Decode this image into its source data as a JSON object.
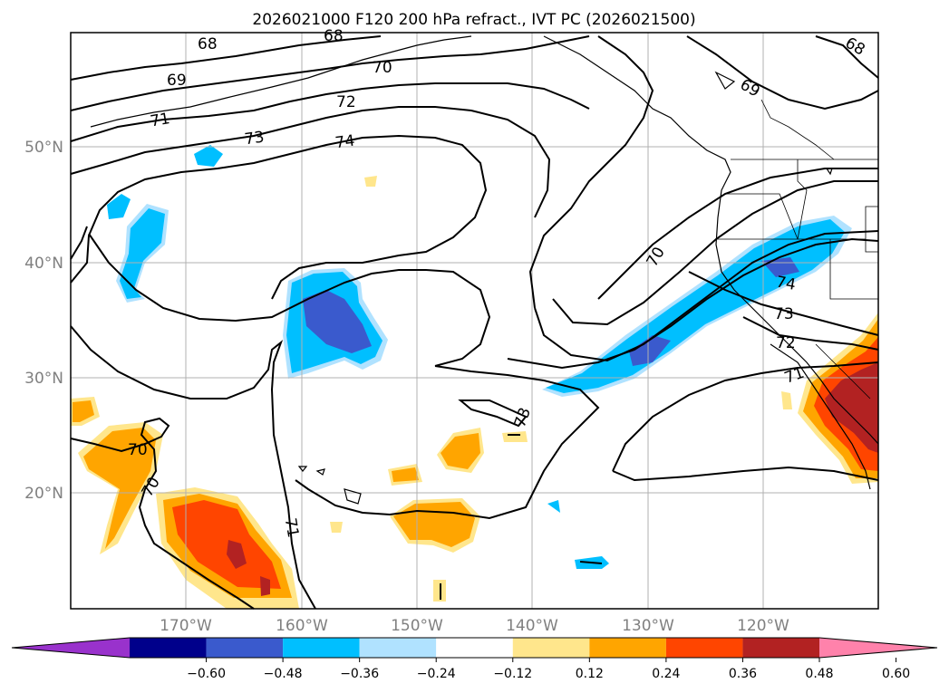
{
  "title": "2026021000 F120 200 hPa refract., IVT PC (2026021500)",
  "lat_labels": [
    "50°N",
    "40°N",
    "30°N",
    "20°N"
  ],
  "lon_labels": [
    "170°W",
    "160°W",
    "150°W",
    "140°W",
    "130°W",
    "120°W"
  ],
  "colorbar": {
    "ticks": [
      "−0.60",
      "−0.48",
      "−0.36",
      "−0.24",
      "−0.12",
      "0.12",
      "0.24",
      "0.36",
      "0.48",
      "0.60"
    ],
    "colors": [
      "#9932cc",
      "#00008b",
      "#3a5acd",
      "#00bfff",
      "#b0e2ff",
      "#ffffff",
      "#ffe68c",
      "#ffa500",
      "#ff4500",
      "#b22222",
      "#ff82ab"
    ]
  },
  "contour_labels": {
    "c68a": "68",
    "c68b": "68",
    "c69a": "69",
    "c69b": "69",
    "c70a": "70",
    "c70b": "70",
    "c70c": "70",
    "c70d": "70",
    "c71a": "71",
    "c71b": "71",
    "c71c": "71",
    "c72a": "72",
    "c72b": "72",
    "c73a": "73",
    "c73b": "73",
    "c73c": "73",
    "c74a": "74",
    "c74b": "74"
  }
}
